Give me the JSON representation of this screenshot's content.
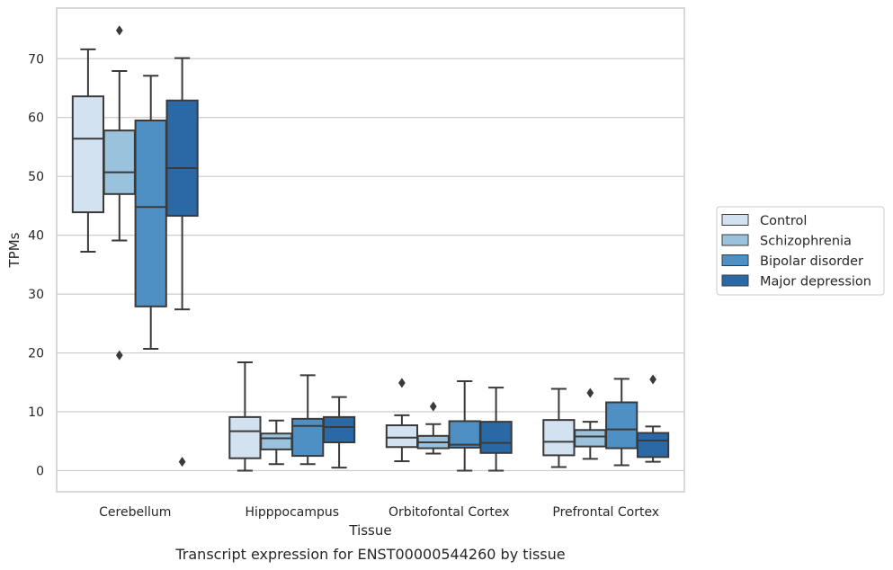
{
  "chart_data": {
    "type": "boxplot",
    "caption": "Transcript expression for ENST00000544260 by tissue",
    "xlabel": "Tissue",
    "ylabel": "TPMs",
    "ylim": [
      -3.6,
      78.6
    ],
    "yticks": [
      0,
      10,
      20,
      30,
      40,
      50,
      60,
      70
    ],
    "grid": "horizontal",
    "legend_position": "right",
    "categories": [
      "Cerebellum",
      "Hipppocampus",
      "Orbitofontal Cortex",
      "Prefrontal Cortex"
    ],
    "series": [
      {
        "name": "Control",
        "color": "#d2e2f1",
        "boxes": [
          {
            "whisker_low": 37.2,
            "q1": 43.9,
            "median": 56.4,
            "q3": 63.6,
            "whisker_high": 71.6,
            "outliers": []
          },
          {
            "whisker_low": 0.0,
            "q1": 2.1,
            "median": 6.7,
            "q3": 9.1,
            "whisker_high": 18.4,
            "outliers": []
          },
          {
            "whisker_low": 1.6,
            "q1": 4.0,
            "median": 5.6,
            "q3": 7.7,
            "whisker_high": 9.4,
            "outliers": [
              14.9
            ]
          },
          {
            "whisker_low": 0.6,
            "q1": 2.6,
            "median": 4.9,
            "q3": 8.6,
            "whisker_high": 13.9,
            "outliers": []
          }
        ]
      },
      {
        "name": "Schizophrenia",
        "color": "#9ac2dd",
        "boxes": [
          {
            "whisker_low": 39.1,
            "q1": 47.0,
            "median": 50.7,
            "q3": 57.8,
            "whisker_high": 67.9,
            "outliers": [
              19.6,
              74.8
            ]
          },
          {
            "whisker_low": 1.1,
            "q1": 3.6,
            "median": 5.5,
            "q3": 6.3,
            "whisker_high": 8.5,
            "outliers": []
          },
          {
            "whisker_low": 2.9,
            "q1": 3.8,
            "median": 4.8,
            "q3": 5.9,
            "whisker_high": 7.9,
            "outliers": [
              10.9
            ]
          },
          {
            "whisker_low": 2.0,
            "q1": 4.1,
            "median": 5.8,
            "q3": 6.9,
            "whisker_high": 8.3,
            "outliers": [
              13.2
            ]
          }
        ]
      },
      {
        "name": "Bipolar disorder",
        "color": "#4f90c4",
        "boxes": [
          {
            "whisker_low": 20.7,
            "q1": 27.9,
            "median": 44.8,
            "q3": 59.5,
            "whisker_high": 67.1,
            "outliers": []
          },
          {
            "whisker_low": 1.1,
            "q1": 2.5,
            "median": 7.6,
            "q3": 8.8,
            "whisker_high": 16.2,
            "outliers": []
          },
          {
            "whisker_low": 0.0,
            "q1": 3.9,
            "median": 4.4,
            "q3": 8.4,
            "whisker_high": 15.2,
            "outliers": []
          },
          {
            "whisker_low": 0.9,
            "q1": 3.8,
            "median": 7.0,
            "q3": 11.6,
            "whisker_high": 15.6,
            "outliers": []
          }
        ]
      },
      {
        "name": "Major depression",
        "color": "#2b69a6",
        "boxes": [
          {
            "whisker_low": 27.4,
            "q1": 43.3,
            "median": 51.4,
            "q3": 62.9,
            "whisker_high": 70.1,
            "outliers": [
              1.5
            ]
          },
          {
            "whisker_low": 0.5,
            "q1": 4.8,
            "median": 7.4,
            "q3": 9.1,
            "whisker_high": 12.5,
            "outliers": []
          },
          {
            "whisker_low": 0.0,
            "q1": 3.0,
            "median": 4.7,
            "q3": 8.3,
            "whisker_high": 14.1,
            "outliers": []
          },
          {
            "whisker_low": 1.5,
            "q1": 2.3,
            "median": 5.1,
            "q3": 6.4,
            "whisker_high": 7.5,
            "outliers": [
              15.5
            ]
          }
        ]
      }
    ]
  }
}
